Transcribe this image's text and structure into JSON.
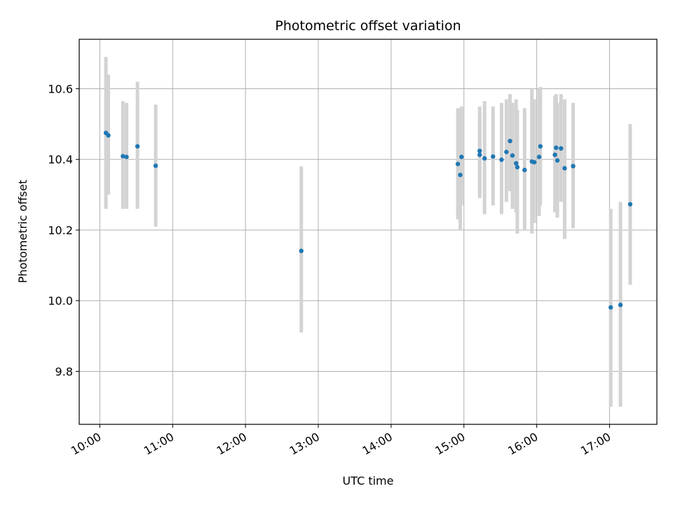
{
  "chart_data": {
    "type": "scatter",
    "title": "Photometric offset variation",
    "xlabel": "UTC time",
    "ylabel": "Photometric offset",
    "x_unit": "hours UTC",
    "xlim": [
      "09:43",
      "17:39"
    ],
    "ylim": [
      9.65,
      10.74
    ],
    "grid": true,
    "x_ticks": [
      {
        "t": "10:00",
        "label": "10:00"
      },
      {
        "t": "11:00",
        "label": "11:00"
      },
      {
        "t": "12:00",
        "label": "12:00"
      },
      {
        "t": "13:00",
        "label": "13:00"
      },
      {
        "t": "14:00",
        "label": "14:00"
      },
      {
        "t": "15:00",
        "label": "15:00"
      },
      {
        "t": "16:00",
        "label": "16:00"
      },
      {
        "t": "17:00",
        "label": "17:00"
      }
    ],
    "y_ticks": [
      9.8,
      10.0,
      10.2,
      10.4,
      10.6
    ],
    "y_tick_labels": [
      "9.8",
      "10.0",
      "10.2",
      "10.4",
      "10.6"
    ],
    "colors": {
      "point": "#1f77b4",
      "errorbar": "#d3d3d3",
      "grid": "#b0b0b0"
    },
    "points": [
      {
        "t": "10:05",
        "y": 10.475,
        "lo": 10.26,
        "hi": 10.69
      },
      {
        "t": "10:07",
        "y": 10.468,
        "lo": 10.3,
        "hi": 10.64
      },
      {
        "t": "10:19",
        "y": 10.409,
        "lo": 10.26,
        "hi": 10.565
      },
      {
        "t": "10:22",
        "y": 10.407,
        "lo": 10.26,
        "hi": 10.56
      },
      {
        "t": "10:31",
        "y": 10.437,
        "lo": 10.26,
        "hi": 10.62
      },
      {
        "t": "10:46",
        "y": 10.382,
        "lo": 10.21,
        "hi": 10.555
      },
      {
        "t": "12:46",
        "y": 10.141,
        "lo": 9.91,
        "hi": 10.38
      },
      {
        "t": "14:55",
        "y": 10.387,
        "lo": 10.23,
        "hi": 10.545
      },
      {
        "t": "14:57",
        "y": 10.356,
        "lo": 10.2,
        "hi": 10.54
      },
      {
        "t": "14:58",
        "y": 10.407,
        "lo": 10.27,
        "hi": 10.55
      },
      {
        "t": "15:13",
        "y": 10.424,
        "lo": 10.29,
        "hi": 10.55
      },
      {
        "t": "15:13",
        "y": 10.413,
        "lo": 10.3,
        "hi": 10.53
      },
      {
        "t": "15:17",
        "y": 10.403,
        "lo": 10.245,
        "hi": 10.565
      },
      {
        "t": "15:24",
        "y": 10.408,
        "lo": 10.27,
        "hi": 10.55
      },
      {
        "t": "15:31",
        "y": 10.399,
        "lo": 10.245,
        "hi": 10.56
      },
      {
        "t": "15:35",
        "y": 10.421,
        "lo": 10.28,
        "hi": 10.57
      },
      {
        "t": "15:38",
        "y": 10.452,
        "lo": 10.31,
        "hi": 10.585
      },
      {
        "t": "15:40",
        "y": 10.411,
        "lo": 10.26,
        "hi": 10.56
      },
      {
        "t": "15:43",
        "y": 10.389,
        "lo": 10.25,
        "hi": 10.57
      },
      {
        "t": "15:44",
        "y": 10.378,
        "lo": 10.19,
        "hi": 10.54
      },
      {
        "t": "15:50",
        "y": 10.37,
        "lo": 10.2,
        "hi": 10.545
      },
      {
        "t": "15:56",
        "y": 10.394,
        "lo": 10.19,
        "hi": 10.6
      },
      {
        "t": "15:58",
        "y": 10.392,
        "lo": 10.22,
        "hi": 10.57
      },
      {
        "t": "16:02",
        "y": 10.407,
        "lo": 10.24,
        "hi": 10.6
      },
      {
        "t": "16:03",
        "y": 10.437,
        "lo": 10.27,
        "hi": 10.605
      },
      {
        "t": "16:15",
        "y": 10.413,
        "lo": 10.25,
        "hi": 10.58
      },
      {
        "t": "16:16",
        "y": 10.433,
        "lo": 10.27,
        "hi": 10.585
      },
      {
        "t": "16:17",
        "y": 10.397,
        "lo": 10.235,
        "hi": 10.56
      },
      {
        "t": "16:20",
        "y": 10.431,
        "lo": 10.28,
        "hi": 10.585
      },
      {
        "t": "16:23",
        "y": 10.375,
        "lo": 10.175,
        "hi": 10.57
      },
      {
        "t": "16:30",
        "y": 10.381,
        "lo": 10.205,
        "hi": 10.56
      },
      {
        "t": "17:01",
        "y": 9.981,
        "lo": 9.7,
        "hi": 10.26
      },
      {
        "t": "17:09",
        "y": 9.988,
        "lo": 9.7,
        "hi": 10.28
      },
      {
        "t": "17:17",
        "y": 10.273,
        "lo": 10.045,
        "hi": 10.5
      }
    ]
  }
}
